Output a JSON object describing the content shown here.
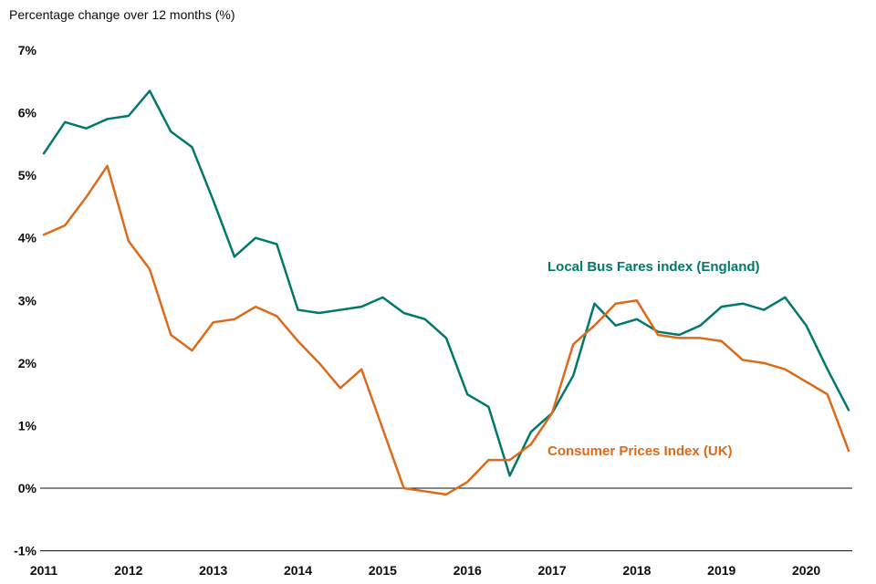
{
  "page": {
    "title": "Percentage change over 12 months (%)"
  },
  "chart_data": {
    "type": "line",
    "title": "Percentage change over 12 months (%)",
    "ylabel": "Percentage change over 12 months (%)",
    "xlabel": "",
    "ylim": [
      -1,
      7
    ],
    "y_tick_labels": [
      "7%",
      "6%",
      "5%",
      "4%",
      "3%",
      "2%",
      "1%",
      "0%",
      "-1%"
    ],
    "x_tick_labels": [
      "2011",
      "2012",
      "2013",
      "2014",
      "2015",
      "2016",
      "2017",
      "2018",
      "2019",
      "2020"
    ],
    "points_per_year": 4,
    "frequency": "quarterly",
    "grid": false,
    "zero_line": true,
    "axis_color": "#0b0c0c",
    "legend_position": "inline-labels",
    "series": [
      {
        "name": "Local Bus Fares index (England)",
        "color": "#00786B",
        "values": [
          5.35,
          5.85,
          5.75,
          5.9,
          5.95,
          6.35,
          5.7,
          5.45,
          4.6,
          3.7,
          4.0,
          3.9,
          2.85,
          2.8,
          2.85,
          2.9,
          3.05,
          2.8,
          2.7,
          2.4,
          1.5,
          1.3,
          0.2,
          0.9,
          1.2,
          1.8,
          2.95,
          2.6,
          2.7,
          2.5,
          2.45,
          2.6,
          2.9,
          2.95,
          2.85,
          3.05,
          2.6,
          1.9,
          1.25
        ]
      },
      {
        "name": "Consumer Prices Index (UK)",
        "color": "#DC6A1B",
        "values": [
          4.05,
          4.2,
          4.65,
          5.15,
          3.95,
          3.5,
          2.45,
          2.2,
          2.65,
          2.7,
          2.9,
          2.75,
          2.35,
          2.0,
          1.6,
          1.9,
          0.95,
          0.0,
          -0.05,
          -0.1,
          0.1,
          0.45,
          0.45,
          0.7,
          1.2,
          2.3,
          2.6,
          2.95,
          3.0,
          2.45,
          2.4,
          2.4,
          2.35,
          2.05,
          2.0,
          1.9,
          1.7,
          1.5,
          0.6
        ]
      }
    ]
  }
}
